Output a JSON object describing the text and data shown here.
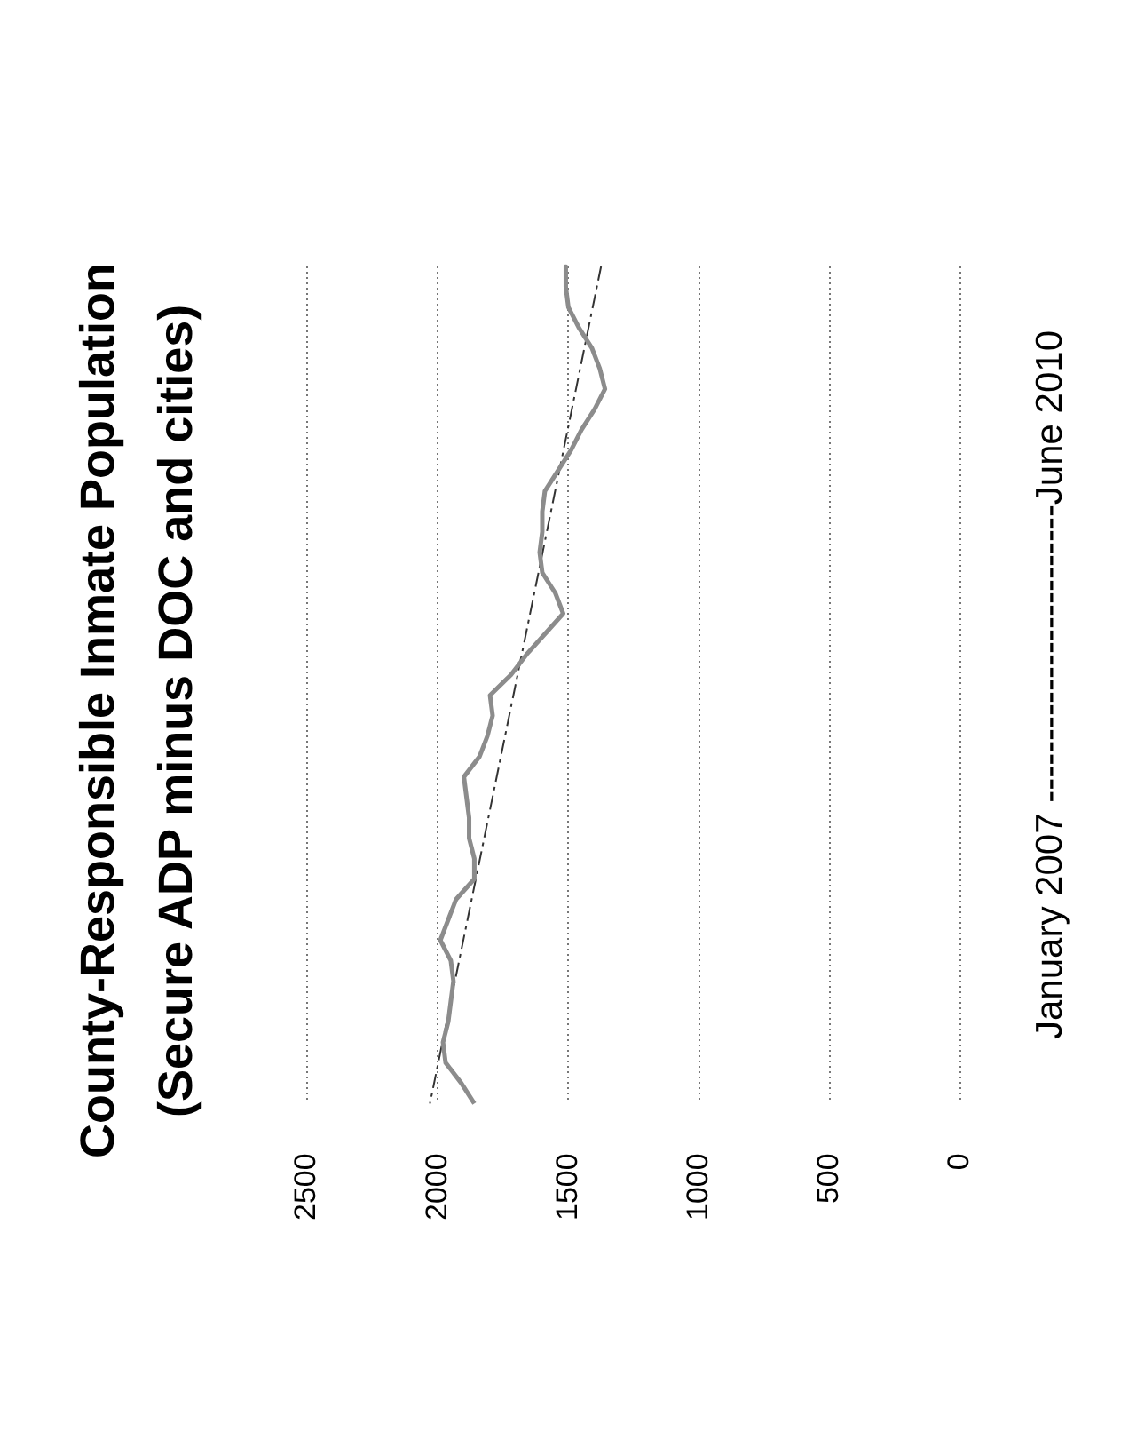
{
  "chart_data": {
    "type": "line",
    "orientation": "horizontal",
    "title": "County-Responsible Inmate Population",
    "subtitle": "(Secure ADP minus DOC and cities)",
    "ylabel": "January 2007 ------------------------June 2010",
    "categories": [
      null,
      null,
      null,
      null,
      null,
      null,
      null,
      null,
      null,
      null,
      null,
      null,
      null,
      null,
      null,
      null,
      null,
      null,
      null,
      null,
      null,
      null,
      null,
      null,
      null,
      null,
      null,
      null,
      null,
      null,
      null,
      null,
      null,
      null,
      null,
      null,
      null,
      null,
      null,
      null,
      null,
      null
    ],
    "series": [
      {
        "color": "#8c8c8c",
        "values": [
          1510,
          1510,
          1500,
          1460,
          1410,
          1380,
          1360,
          1400,
          1450,
          1490,
          1540,
          1590,
          1600,
          1600,
          1610,
          1600,
          1550,
          1520,
          1590,
          1660,
          1720,
          1800,
          1790,
          1810,
          1840,
          1900,
          1890,
          1880,
          1880,
          1860,
          1860,
          1930,
          1960,
          1990,
          1950,
          1940,
          1950,
          1960,
          1980,
          1970,
          1910,
          1860
        ]
      },
      {
        "color": "#333333",
        "line_style": "dashed",
        "values": [
          1375,
          null,
          null,
          null,
          null,
          null,
          null,
          null,
          null,
          null,
          null,
          null,
          null,
          null,
          null,
          null,
          null,
          null,
          null,
          null,
          null,
          null,
          null,
          null,
          null,
          null,
          null,
          null,
          null,
          null,
          null,
          null,
          null,
          null,
          null,
          null,
          null,
          null,
          null,
          null,
          null,
          2030
        ]
      }
    ],
    "xlim": [
      2500,
      0
    ],
    "xticks": [
      2500,
      2000,
      1500,
      1000,
      500,
      0
    ],
    "grid": "x",
    "legend": false,
    "marker": "none",
    "line_style": "solid"
  }
}
